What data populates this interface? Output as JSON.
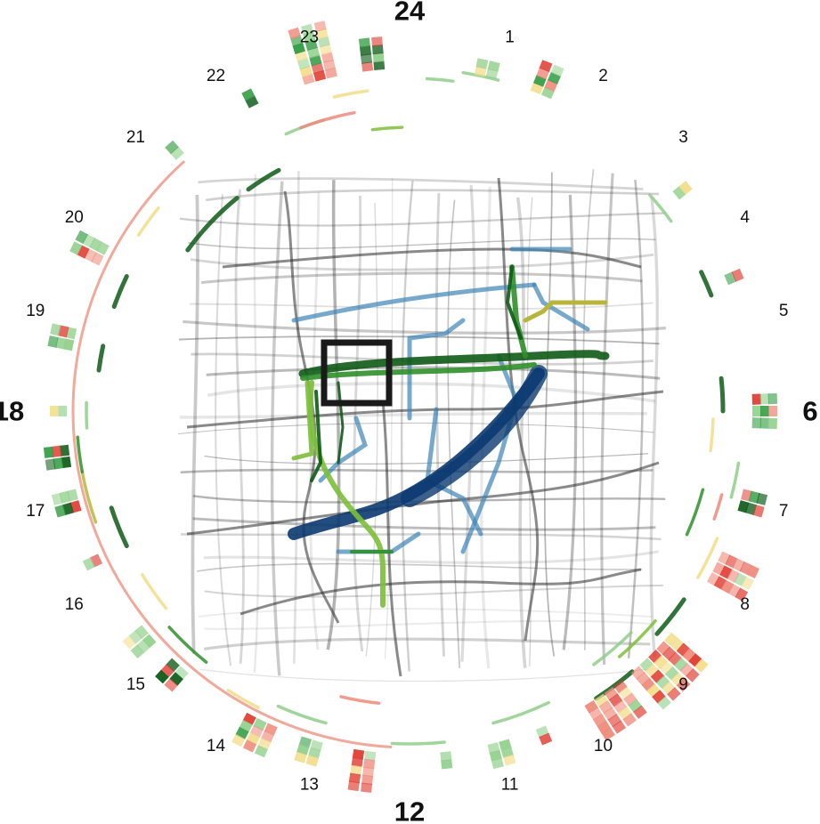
{
  "chart_data": {
    "type": "radial-timeline-map",
    "hour_labels": [
      "24",
      "1",
      "2",
      "3",
      "4",
      "5",
      "6",
      "7",
      "8",
      "9",
      "10",
      "11",
      "12",
      "13",
      "14",
      "15",
      "16",
      "17",
      "18",
      "19",
      "20",
      "21",
      "22",
      "23"
    ],
    "major_hours": [
      "24",
      "6",
      "12",
      "18"
    ],
    "colors": {
      "road": "#2a2a2a",
      "route_dark": "#0b3a70",
      "route_light": "#3d84b8",
      "track_green": "#2f8f2a",
      "track_dark": "#0e5a16",
      "track_lime": "#7cbf3a",
      "track_olive": "#b8b63a",
      "cell_red": "#e03a2f",
      "cell_pink": "#ef8a7a",
      "cell_yellow": "#f2dd8a",
      "cell_lightgreen": "#8fcf8a",
      "cell_green": "#2e9a3e",
      "cell_darkgreen": "#0b5a16",
      "inner_ring": "#f0a090",
      "selection_box": "#1a1a1a"
    },
    "activity": [
      {
        "hour": 23.0,
        "width": 3,
        "depth": 7,
        "tone": "mix"
      },
      {
        "hour": 23.6,
        "width": 2,
        "depth": 4,
        "tone": "dark"
      },
      {
        "hour": 0.85,
        "width": 2,
        "depth": 2,
        "tone": "green"
      },
      {
        "hour": 1.5,
        "width": 2,
        "depth": 4,
        "tone": "mix"
      },
      {
        "hour": 3.4,
        "width": 1,
        "depth": 2,
        "tone": "green"
      },
      {
        "hour": 4.5,
        "width": 1,
        "depth": 2,
        "tone": "dark"
      },
      {
        "hour": 6.0,
        "width": 3,
        "depth": 3,
        "tone": "mix"
      },
      {
        "hour": 7.0,
        "width": 2,
        "depth": 3,
        "tone": "dark"
      },
      {
        "hour": 7.8,
        "width": 3,
        "depth": 5,
        "tone": "red"
      },
      {
        "hour": 9.0,
        "width": 5,
        "depth": 6,
        "tone": "red"
      },
      {
        "hour": 9.7,
        "width": 4,
        "depth": 5,
        "tone": "red"
      },
      {
        "hour": 10.5,
        "width": 1,
        "depth": 2,
        "tone": "dark"
      },
      {
        "hour": 11.0,
        "width": 2,
        "depth": 3,
        "tone": "green"
      },
      {
        "hour": 11.6,
        "width": 1,
        "depth": 2,
        "tone": "green"
      },
      {
        "hour": 12.5,
        "width": 2,
        "depth": 5,
        "tone": "red"
      },
      {
        "hour": 13.1,
        "width": 2,
        "depth": 3,
        "tone": "green"
      },
      {
        "hour": 13.7,
        "width": 3,
        "depth": 4,
        "tone": "mix"
      },
      {
        "hour": 14.8,
        "width": 2,
        "depth": 3,
        "tone": "dark"
      },
      {
        "hour": 15.3,
        "width": 2,
        "depth": 3,
        "tone": "green"
      },
      {
        "hour": 16.3,
        "width": 1,
        "depth": 2,
        "tone": "dark"
      },
      {
        "hour": 17.0,
        "width": 2,
        "depth": 3,
        "tone": "dark"
      },
      {
        "hour": 17.5,
        "width": 2,
        "depth": 3,
        "tone": "dark"
      },
      {
        "hour": 18.0,
        "width": 1,
        "depth": 2,
        "tone": "green"
      },
      {
        "hour": 18.8,
        "width": 2,
        "depth": 3,
        "tone": "mix"
      },
      {
        "hour": 19.8,
        "width": 2,
        "depth": 4,
        "tone": "mix"
      },
      {
        "hour": 21.2,
        "width": 1,
        "depth": 2,
        "tone": "dark"
      },
      {
        "hour": 22.2,
        "width": 1,
        "depth": 2,
        "tone": "dark"
      }
    ],
    "arc_tracks": [
      {
        "start": 0.6,
        "end": 1.0,
        "level": 5,
        "color": "lightgreen"
      },
      {
        "start": 3.2,
        "end": 3.6,
        "level": 3,
        "color": "lightgreen"
      },
      {
        "start": 4.3,
        "end": 4.6,
        "level": 3,
        "color": "dark"
      },
      {
        "start": 5.6,
        "end": 6.0,
        "level": 2,
        "color": "dark"
      },
      {
        "start": 6.1,
        "end": 6.5,
        "level": 1,
        "color": "yellow"
      },
      {
        "start": 6.6,
        "end": 7.0,
        "level": 4,
        "color": "lightgreen"
      },
      {
        "start": 7.0,
        "end": 7.6,
        "level": 1,
        "color": "green"
      },
      {
        "start": 7.0,
        "end": 7.3,
        "level": 3,
        "color": "pink"
      },
      {
        "start": 7.5,
        "end": 8.0,
        "level": 4,
        "color": "yellow"
      },
      {
        "start": 8.3,
        "end": 8.8,
        "level": 4,
        "color": "dark"
      },
      {
        "start": 8.7,
        "end": 9.3,
        "level": 3,
        "color": "lime"
      },
      {
        "start": 9.0,
        "end": 9.6,
        "level": 2,
        "color": "lightgreen"
      },
      {
        "start": 9.3,
        "end": 9.8,
        "level": 5,
        "color": "dark"
      },
      {
        "start": 10.3,
        "end": 11.0,
        "level": 3,
        "color": "lightgreen"
      },
      {
        "start": 11.6,
        "end": 12.2,
        "level": 4,
        "color": "lightgreen"
      },
      {
        "start": 12.4,
        "end": 12.9,
        "level": 0,
        "color": "pink"
      },
      {
        "start": 13.0,
        "end": 13.6,
        "level": 3,
        "color": "lightgreen"
      },
      {
        "start": 13.8,
        "end": 14.2,
        "level": 4,
        "color": "yellow"
      },
      {
        "start": 14.6,
        "end": 15.2,
        "level": 3,
        "color": "green"
      },
      {
        "start": 15.4,
        "end": 15.9,
        "level": 2,
        "color": "yellow"
      },
      {
        "start": 16.3,
        "end": 16.8,
        "level": 2,
        "color": "dark"
      },
      {
        "start": 16.7,
        "end": 17.3,
        "level": 4,
        "color": "olive"
      },
      {
        "start": 17.3,
        "end": 17.7,
        "level": 4,
        "color": "green"
      },
      {
        "start": 17.8,
        "end": 18.1,
        "level": 3,
        "color": "lightgreen"
      },
      {
        "start": 18.5,
        "end": 18.8,
        "level": 2,
        "color": "dark"
      },
      {
        "start": 19.3,
        "end": 19.7,
        "level": 2,
        "color": "dark"
      },
      {
        "start": 20.2,
        "end": 20.6,
        "level": 3,
        "color": "yellow"
      },
      {
        "start": 20.4,
        "end": 21.4,
        "level": -2,
        "color": "dark"
      },
      {
        "start": 21.6,
        "end": 22.1,
        "level": -2,
        "color": "dark"
      },
      {
        "start": 22.4,
        "end": 22.9,
        "level": 1,
        "color": "lightgreen"
      },
      {
        "start": 22.6,
        "end": 23.3,
        "level": 1,
        "color": "pink"
      },
      {
        "start": 23.1,
        "end": 23.5,
        "level": 3,
        "color": "yellow"
      },
      {
        "start": 23.5,
        "end": 23.9,
        "level": -1,
        "color": "lime"
      },
      {
        "start": 0.2,
        "end": 0.5,
        "level": 4,
        "color": "lightgreen"
      }
    ],
    "inner_ring": {
      "start": 12.2,
      "end": 21.2
    }
  }
}
